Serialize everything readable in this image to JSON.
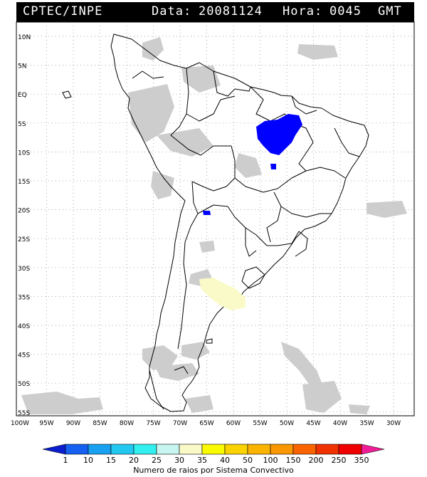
{
  "header": {
    "source": "CPTEC/INPE",
    "date_label": "Data:",
    "date_value": "20081124",
    "time_label": "Hora:",
    "time_value": "0045",
    "timezone": "GMT"
  },
  "lat_labels": [
    "10N",
    "5N",
    "EQ",
    "5S",
    "10S",
    "15S",
    "20S",
    "25S",
    "30S",
    "35S",
    "40S",
    "45S",
    "50S",
    "55S"
  ],
  "lon_labels": [
    "100W",
    "95W",
    "90W",
    "85W",
    "80W",
    "75W",
    "70W",
    "65W",
    "60W",
    "55W",
    "50W",
    "45W",
    "40W",
    "35W",
    "30W"
  ],
  "colorbar": {
    "title": "Numero de raios por Sistema Convectivo",
    "ticks": [
      "1",
      "10",
      "15",
      "20",
      "25",
      "30",
      "35",
      "40",
      "50",
      "100",
      "150",
      "200",
      "250",
      "350"
    ],
    "colors": [
      "#0a1ecf",
      "#1560f0",
      "#1aa0f0",
      "#22c8f0",
      "#33f0f0",
      "#c8f5f0",
      "#fafac8",
      "#fafa00",
      "#fad200",
      "#fab400",
      "#fa9600",
      "#fa6400",
      "#f03200",
      "#f00000",
      "#f01e96"
    ]
  },
  "colors": {
    "cloud": "#c8c8c8",
    "convective_blue": "#0000ff",
    "convective_yellow": "#fafac8",
    "map_lines": "#000000"
  }
}
